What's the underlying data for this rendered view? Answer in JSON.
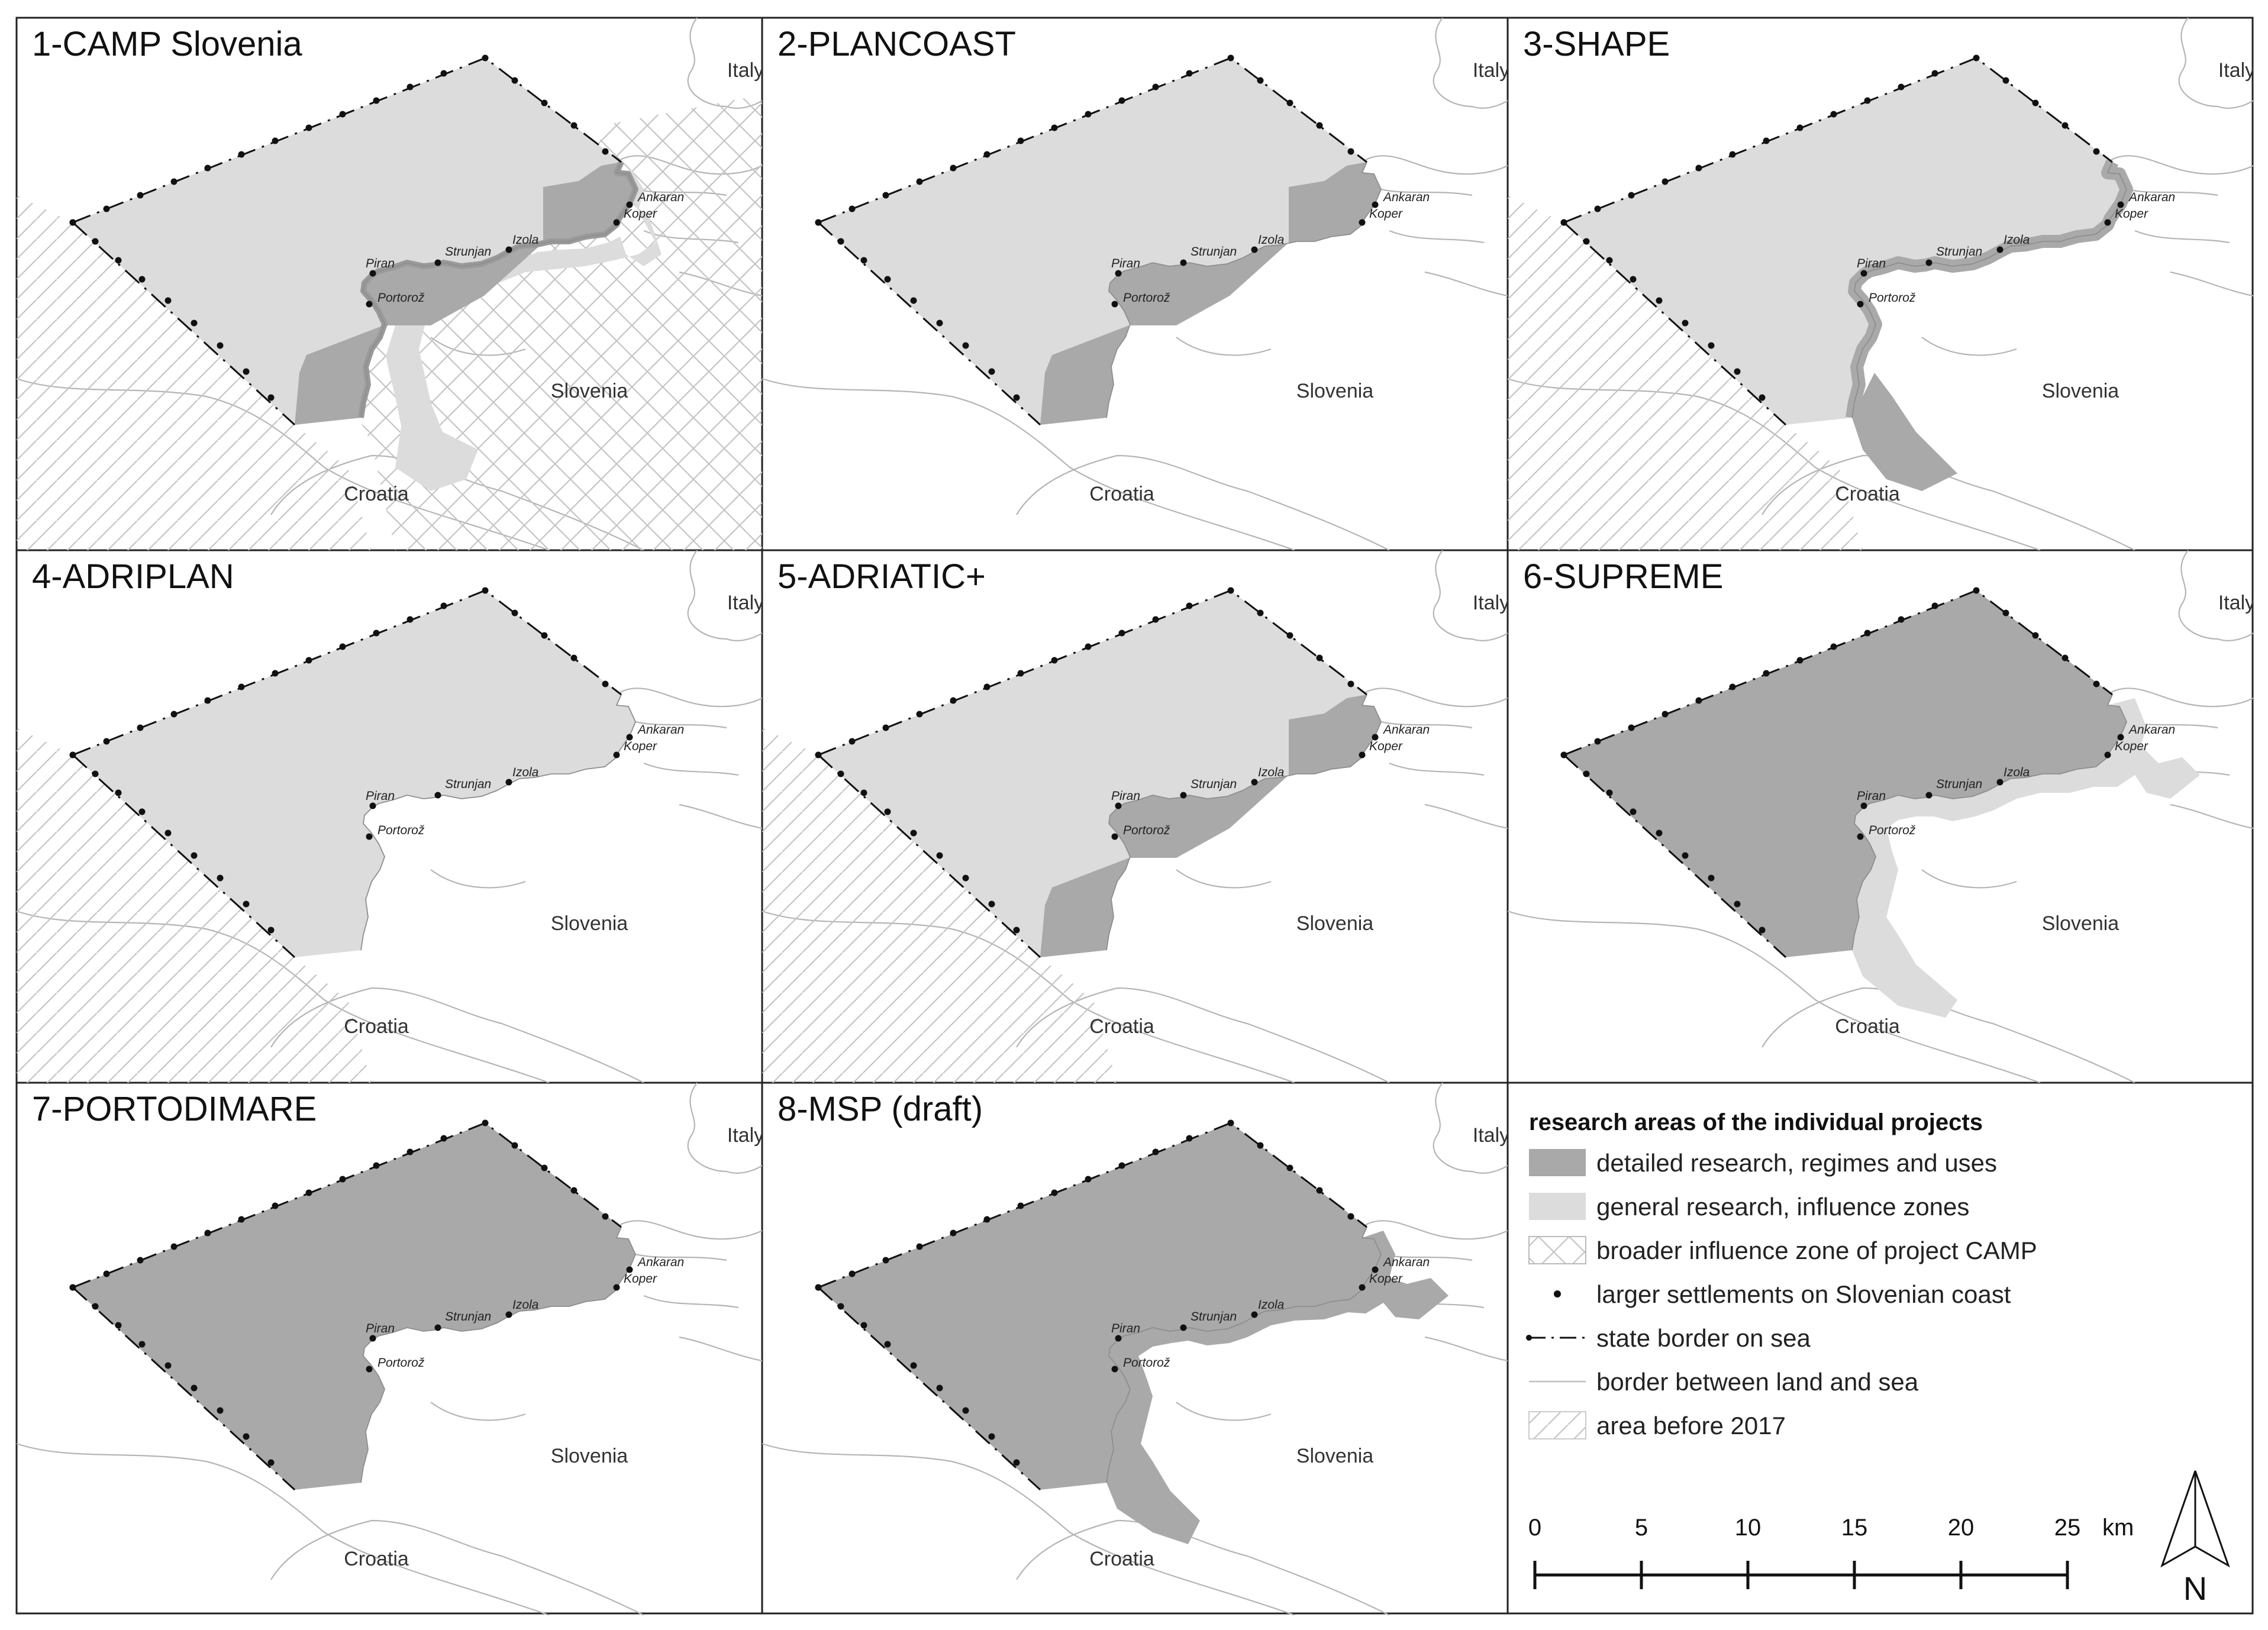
{
  "panels": [
    {
      "title": "1-CAMP Slovenia",
      "mode": "camp"
    },
    {
      "title": "2-PLANCOAST",
      "mode": "plancoast"
    },
    {
      "title": "3-SHAPE",
      "mode": "shape"
    },
    {
      "title": "4-ADRIPLAN",
      "mode": "adriplan"
    },
    {
      "title": "5-ADRIATIC+",
      "mode": "adriatic"
    },
    {
      "title": "6-SUPREME",
      "mode": "supreme"
    },
    {
      "title": "7-PORTODIMARE",
      "mode": "portodimare"
    },
    {
      "title": "8-MSP (draft)",
      "mode": "msp"
    }
  ],
  "countries": {
    "italy": "Italy",
    "slovenia": "Slovenia",
    "croatia": "Croatia"
  },
  "towns": [
    "Ankaran",
    "Koper",
    "Izola",
    "Strunjan",
    "Piran",
    "Portorož"
  ],
  "legend": {
    "title": "research areas of the individual projects",
    "items": [
      {
        "label": "detailed research, regimes and uses",
        "symbol": "detailed-research-swatch"
      },
      {
        "label": "general research, influence zones",
        "symbol": "general-research-swatch"
      },
      {
        "label": "broader influence zone of project CAMP",
        "symbol": "crosshatch-swatch"
      },
      {
        "label": "larger settlements on Slovenian coast",
        "symbol": "settlement-dot"
      },
      {
        "label": "state border on sea",
        "symbol": "dash-dot-line"
      },
      {
        "label": "border between land and sea",
        "symbol": "thin-line"
      },
      {
        "label": "area before 2017",
        "symbol": "diagonal-hatch-swatch"
      }
    ]
  },
  "scale": {
    "ticks": [
      "0",
      "5",
      "10",
      "15",
      "20",
      "25"
    ],
    "unit": "km"
  },
  "north_arrow": {
    "label": "N"
  },
  "colors": {
    "detailed": "#a9a9a9",
    "general": "#dcdcdc",
    "line": "#111111",
    "coast": "#b5b5b5",
    "frame": "#222222"
  }
}
